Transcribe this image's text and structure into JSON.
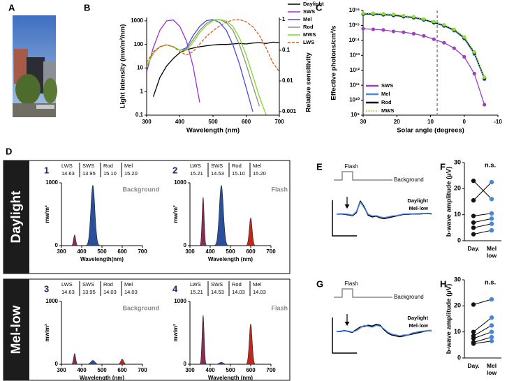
{
  "chart_data": [
    {
      "type": "image",
      "panel": "A"
    },
    {
      "type": "line",
      "panel": "B",
      "xlabel": "Wavelength (nm)",
      "ylabel": "Light intensity (mw/m²/nm)",
      "y2label": "Relative sensitivity",
      "x": [
        300,
        320,
        340,
        360,
        380,
        400,
        420,
        440,
        460,
        480,
        500,
        520,
        540,
        560,
        580,
        600,
        620,
        640,
        660,
        680,
        700
      ],
      "xlim": [
        300,
        700
      ],
      "xticks": [
        300,
        400,
        500,
        600,
        700
      ],
      "ylim": [
        0.1,
        1400
      ],
      "ylog": true,
      "yticks": [
        0.1,
        1,
        10,
        100,
        1000
      ],
      "y2lim": [
        0.00077,
        1.17
      ],
      "y2log": true,
      "y2ticks": [
        0.001,
        0.01,
        0.1,
        1
      ],
      "legend": "outside-right",
      "series": [
        {
          "name": "Daylight",
          "color": "#000000",
          "values": [
            null,
            0.6,
            4,
            12,
            25,
            45,
            60,
            70,
            80,
            88,
            95,
            100,
            100,
            105,
            110,
            105,
            115,
            120,
            110,
            125,
            120
          ]
        },
        {
          "name": "SWS",
          "color": "#9b30d9",
          "axis": "y2",
          "values": [
            0.02,
            0.12,
            0.45,
            0.9,
            0.97,
            0.6,
            0.2,
            0.03,
            0.002,
            null,
            null,
            null,
            null,
            null,
            null,
            null,
            null,
            null,
            null,
            null,
            null
          ]
        },
        {
          "name": "Mel",
          "color": "#4747e6",
          "axis": "y2",
          "values": [
            0.03,
            0.08,
            0.13,
            0.15,
            0.13,
            0.1,
            0.12,
            0.3,
            0.6,
            0.92,
            1.0,
            0.8,
            0.45,
            0.15,
            0.035,
            0.006,
            0.001,
            null,
            null,
            null,
            null
          ]
        },
        {
          "name": "Rod",
          "color": "#8c8c8c",
          "axis": "y2",
          "values": [
            0.03,
            0.08,
            0.13,
            0.15,
            0.13,
            0.1,
            0.11,
            0.22,
            0.45,
            0.75,
            0.97,
            1.0,
            0.8,
            0.45,
            0.15,
            0.035,
            0.007,
            0.0015,
            null,
            null,
            null
          ]
        },
        {
          "name": "MWS",
          "color": "#7ddc1f",
          "axis": "y2",
          "values": [
            0.03,
            0.08,
            0.13,
            0.15,
            0.13,
            0.1,
            0.1,
            0.18,
            0.38,
            0.65,
            0.92,
            1.0,
            0.9,
            0.6,
            0.25,
            0.07,
            0.015,
            0.003,
            0.0008,
            null,
            null
          ]
        },
        {
          "name": "LWS",
          "color": "#e0561a",
          "axis": "y2",
          "dash": "dashed",
          "values": [
            0.04,
            0.09,
            0.13,
            0.15,
            0.13,
            0.09,
            0.07,
            0.09,
            0.16,
            0.28,
            0.43,
            0.62,
            0.82,
            0.97,
            1.0,
            0.85,
            0.58,
            0.3,
            0.12,
            0.04,
            0.02
          ]
        }
      ]
    },
    {
      "type": "line",
      "panel": "C",
      "xlabel": "Solar angle (degrees)",
      "ylabel": "Effective photons/cm²/s",
      "x": [
        30,
        27,
        24,
        21,
        18,
        15,
        12,
        9,
        6,
        3,
        0,
        -3,
        -6
      ],
      "xlim": [
        30,
        -10
      ],
      "xticks": [
        30,
        20,
        10,
        0,
        -10
      ],
      "ylim": [
        1000000000.0,
        1e+16
      ],
      "ylog": true,
      "yticks": [
        {
          "value": 1000000000.0,
          "label": "10⁹"
        },
        {
          "value": 10000000000.0,
          "label": "10¹⁰"
        },
        {
          "value": 100000000000.0,
          "label": "10¹¹"
        },
        {
          "value": 1000000000000.0,
          "label": "10¹²"
        },
        {
          "value": 10000000000000.0,
          "label": "10¹³"
        },
        {
          "value": 100000000000000.0,
          "label": "10¹⁴"
        },
        {
          "value": 1000000000000000.0,
          "label": "10¹⁵"
        },
        {
          "value": 1e+16,
          "label": "10¹⁶"
        }
      ],
      "vline": 8,
      "markers": true,
      "legend": "lower-left",
      "series": [
        {
          "name": "SWS",
          "color": "#9b3fc4",
          "values": [
            600000000000000.0,
            550000000000000.0,
            500000000000000.0,
            400000000000000.0,
            350000000000000.0,
            280000000000000.0,
            200000000000000.0,
            120000000000000.0,
            70000000000000.0,
            30000000000000.0,
            8000000000000.0,
            600000000000.0,
            5000000000.0
          ]
        },
        {
          "name": "Mel",
          "color": "#4a86e8",
          "values": [
            5500000000000000.0,
            5500000000000000.0,
            5000000000000000.0,
            4500000000000000.0,
            3800000000000000.0,
            3200000000000000.0,
            2300000000000000.0,
            1500000000000000.0,
            900000000000000.0,
            450000000000000.0,
            130000000000000.0,
            12000000000000.0,
            250000000000.0
          ]
        },
        {
          "name": "Rod",
          "color": "#000000",
          "values": [
            6000000000000000.0,
            6000000000000000.0,
            5500000000000000.0,
            5000000000000000.0,
            4000000000000000.0,
            3500000000000000.0,
            2500000000000000.0,
            1600000000000000.0,
            1000000000000000.0,
            500000000000000.0,
            150000000000000.0,
            15000000000000.0,
            300000000000.0
          ]
        },
        {
          "name": "MWS",
          "color": "#8fe03c",
          "dash": "dotted",
          "values": [
            6500000000000000.0,
            6500000000000000.0,
            6000000000000000.0,
            5500000000000000.0,
            4500000000000000.0,
            3800000000000000.0,
            2700000000000000.0,
            1800000000000000.0,
            1100000000000000.0,
            550000000000000.0,
            170000000000000.0,
            17000000000000.0,
            350000000000.0
          ]
        }
      ]
    },
    {
      "type": "spectra",
      "panel": "D",
      "rows": [
        "Daylight",
        "Mel-low"
      ],
      "plots": [
        {
          "number": "1",
          "label": "Background",
          "xlabel": "Wavelength(nm)",
          "ylabel": "mw/m²",
          "xlim": [
            300,
            700
          ],
          "xticks": [
            300,
            400,
            500,
            600,
            700
          ],
          "ylim": [
            0,
            1000
          ],
          "yticks": [
            0,
            1000
          ],
          "table": {
            "headers": [
              "LWS",
              "SWS",
              "Rod",
              "Mel"
            ],
            "values": [
              "14.63",
              "13.95",
              "15.10",
              "15.20"
            ]
          },
          "x": [
            365,
            455,
            600
          ],
          "values": [
            170,
            960,
            0
          ],
          "colors": [
            "#8b2a5a",
            "#2a4f9c",
            "#c0281e"
          ]
        },
        {
          "number": "2",
          "label": "Flash",
          "xlabel": "Wavelength (nm)",
          "ylabel": "mw/m²",
          "xlim": [
            300,
            700
          ],
          "xticks": [
            300,
            400,
            500,
            600,
            700
          ],
          "ylim": [
            0,
            1000
          ],
          "yticks": [
            0,
            1000
          ],
          "table": {
            "headers": [
              "LWS",
              "SWS",
              "Rod",
              "Mel"
            ],
            "values": [
              "15.21",
              "14.53",
              "15.10",
              "15.20"
            ]
          },
          "x": [
            365,
            455,
            600
          ],
          "values": [
            770,
            960,
            440
          ],
          "colors": [
            "#8b2a5a",
            "#2a4f9c",
            "#c0281e"
          ]
        },
        {
          "number": "3",
          "label": "Background",
          "xlabel": "Wavelength (nm)",
          "ylabel": "mw/m²",
          "xlim": [
            300,
            700
          ],
          "xticks": [
            300,
            400,
            500,
            600,
            700
          ],
          "ylim": [
            0,
            1000
          ],
          "yticks": [
            0,
            1000
          ],
          "table": {
            "headers": [
              "LWS",
              "SWS",
              "Rod",
              "Mel"
            ],
            "values": [
              "14.63",
              "13.95",
              "14.03",
              "14.03"
            ]
          },
          "x": [
            365,
            455,
            600
          ],
          "values": [
            170,
            60,
            80
          ],
          "colors": [
            "#8b2a5a",
            "#2a4f9c",
            "#c0281e"
          ]
        },
        {
          "number": "4",
          "label": "Flash",
          "xlabel": "Wavelength (nm)",
          "ylabel": "mw/m²",
          "xlim": [
            300,
            700
          ],
          "xticks": [
            300,
            400,
            500,
            600,
            700
          ],
          "ylim": [
            0,
            1000
          ],
          "yticks": [
            0,
            1000
          ],
          "table": {
            "headers": [
              "LWS",
              "SWS",
              "Rod",
              "Mel"
            ],
            "values": [
              "15.21",
              "14.53",
              "14.03",
              "14.03"
            ]
          },
          "x": [
            365,
            455,
            600
          ],
          "values": [
            780,
            30,
            640
          ],
          "colors": [
            "#8b2a5a",
            "#2a4f9c",
            "#c0281e"
          ]
        }
      ]
    },
    {
      "type": "trace",
      "panel": "E",
      "flash_label": "Flash",
      "background_label": "Background",
      "ylim": [
        -0.6,
        1
      ],
      "series": [
        {
          "name": "Daylight",
          "color": "#000000",
          "values": [
            0,
            0.02,
            0,
            -0.03,
            -0.08,
            0.1,
            0.75,
            0.4,
            -0.05,
            -0.15,
            -0.1,
            -0.2,
            -0.25,
            -0.2,
            -0.15,
            -0.1,
            -0.05,
            0,
            0,
            0.02,
            0.03,
            0.02,
            0.04,
            0.05,
            0.03
          ]
        },
        {
          "name": "Mel-low",
          "color": "#4a86e8",
          "values": [
            0,
            0.03,
            0.02,
            0,
            -0.05,
            0.15,
            0.7,
            0.35,
            0,
            -0.1,
            -0.08,
            -0.15,
            -0.2,
            -0.15,
            -0.1,
            -0.08,
            -0.03,
            0.02,
            0.02,
            0.03,
            0.03,
            0.04,
            0.05,
            0.04,
            0.05
          ]
        }
      ]
    },
    {
      "type": "paired",
      "panel": "F",
      "ylabel": "b-wave amplitude (µV)",
      "annotation": "n.s.",
      "categories": [
        "Day.",
        "Mel low"
      ],
      "colors": [
        "#111111",
        "#4a86d8"
      ],
      "ylim": [
        0,
        30
      ],
      "yticks": [
        0,
        10,
        20,
        30
      ],
      "pairs": [
        [
          23,
          16
        ],
        [
          15.5,
          22.5
        ],
        [
          9.5,
          10.5
        ],
        [
          7,
          8.5
        ],
        [
          5,
          6.5
        ],
        [
          2.5,
          4
        ]
      ]
    },
    {
      "type": "trace",
      "panel": "G",
      "flash_label": "Flash",
      "background_label": "Background",
      "ylim": [
        -0.6,
        1
      ],
      "series": [
        {
          "name": "Daylight",
          "color": "#000000",
          "values": [
            0,
            0,
            0.05,
            0,
            -0.05,
            0.1,
            0.25,
            0.3,
            0.35,
            0.3,
            0.4,
            0.35,
            0.1,
            -0.1,
            -0.2,
            -0.25,
            -0.3,
            -0.25,
            -0.2,
            -0.15,
            -0.1,
            -0.05,
            0,
            0.05,
            0.05
          ]
        },
        {
          "name": "Mel-low",
          "color": "#4a86e8",
          "values": [
            0,
            0.02,
            0.03,
            0.02,
            -0.03,
            0.05,
            0.2,
            0.35,
            0.3,
            0.25,
            0.35,
            0.3,
            0.15,
            -0.05,
            -0.15,
            -0.2,
            -0.25,
            -0.2,
            -0.2,
            -0.1,
            -0.05,
            0,
            0.02,
            0.05,
            0.06
          ]
        }
      ]
    },
    {
      "type": "paired",
      "panel": "H",
      "ylabel": "b-wave amplitude (µV)",
      "annotation": "n.s.",
      "categories": [
        "Day.",
        "Mel low"
      ],
      "colors": [
        "#111111",
        "#4a86d8"
      ],
      "ylim": [
        0,
        30
      ],
      "yticks": [
        0,
        10,
        20,
        30
      ],
      "pairs": [
        [
          20.5,
          22.5
        ],
        [
          10,
          15.5
        ],
        [
          8.5,
          12.5
        ],
        [
          7.5,
          10
        ],
        [
          6,
          8
        ],
        [
          5.5,
          6.5
        ]
      ]
    }
  ]
}
